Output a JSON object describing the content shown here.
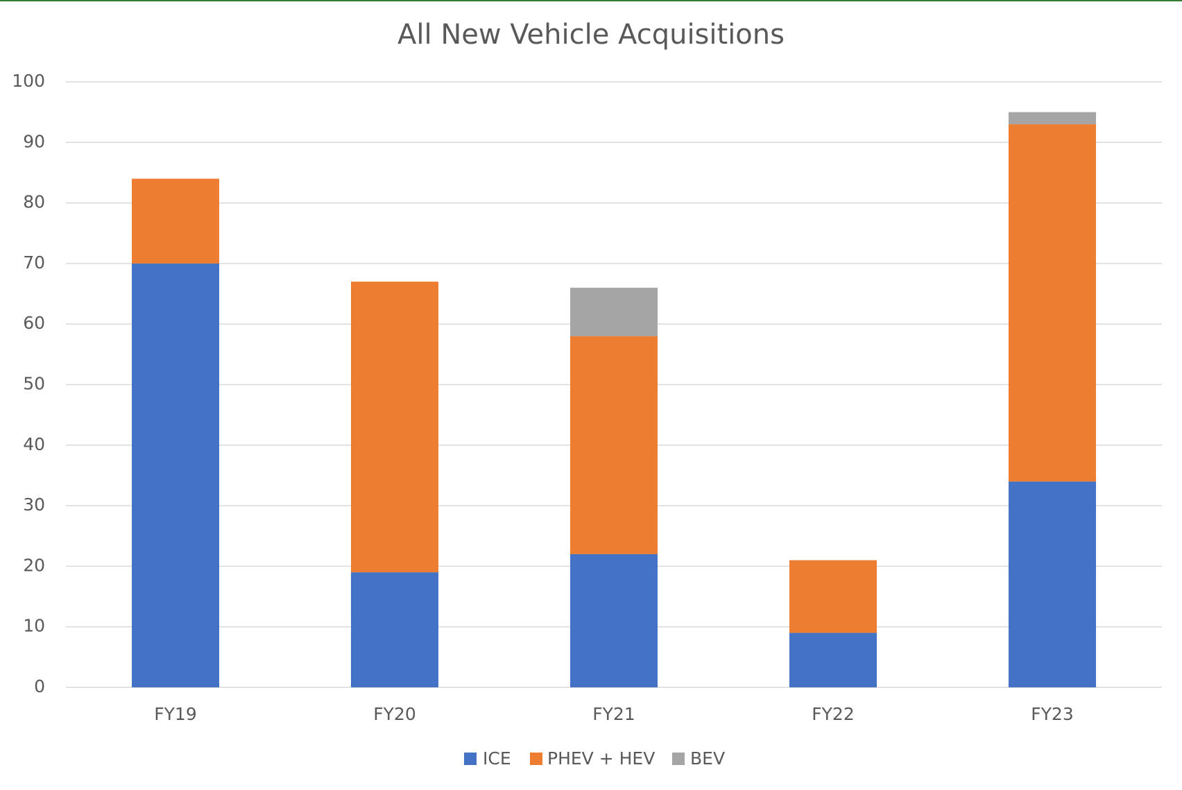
{
  "chart_data": {
    "type": "stacked_bar",
    "title": "All New Vehicle Acquisitions",
    "categories": [
      "FY19",
      "FY20",
      "FY21",
      "FY22",
      "FY23"
    ],
    "series": [
      {
        "name": "ICE",
        "color": "#4472c4",
        "values": [
          70,
          19,
          22,
          9,
          34
        ]
      },
      {
        "name": "PHEV + HEV",
        "color": "#ed7d31",
        "values": [
          14,
          48,
          36,
          12,
          59
        ]
      },
      {
        "name": "BEV",
        "color": "#a5a5a5",
        "values": [
          0,
          0,
          8,
          0,
          2
        ]
      }
    ],
    "ylim": [
      0,
      100
    ],
    "yticks": [
      0,
      10,
      20,
      30,
      40,
      50,
      60,
      70,
      80,
      90,
      100
    ],
    "grid": true,
    "legend": "bottom"
  }
}
